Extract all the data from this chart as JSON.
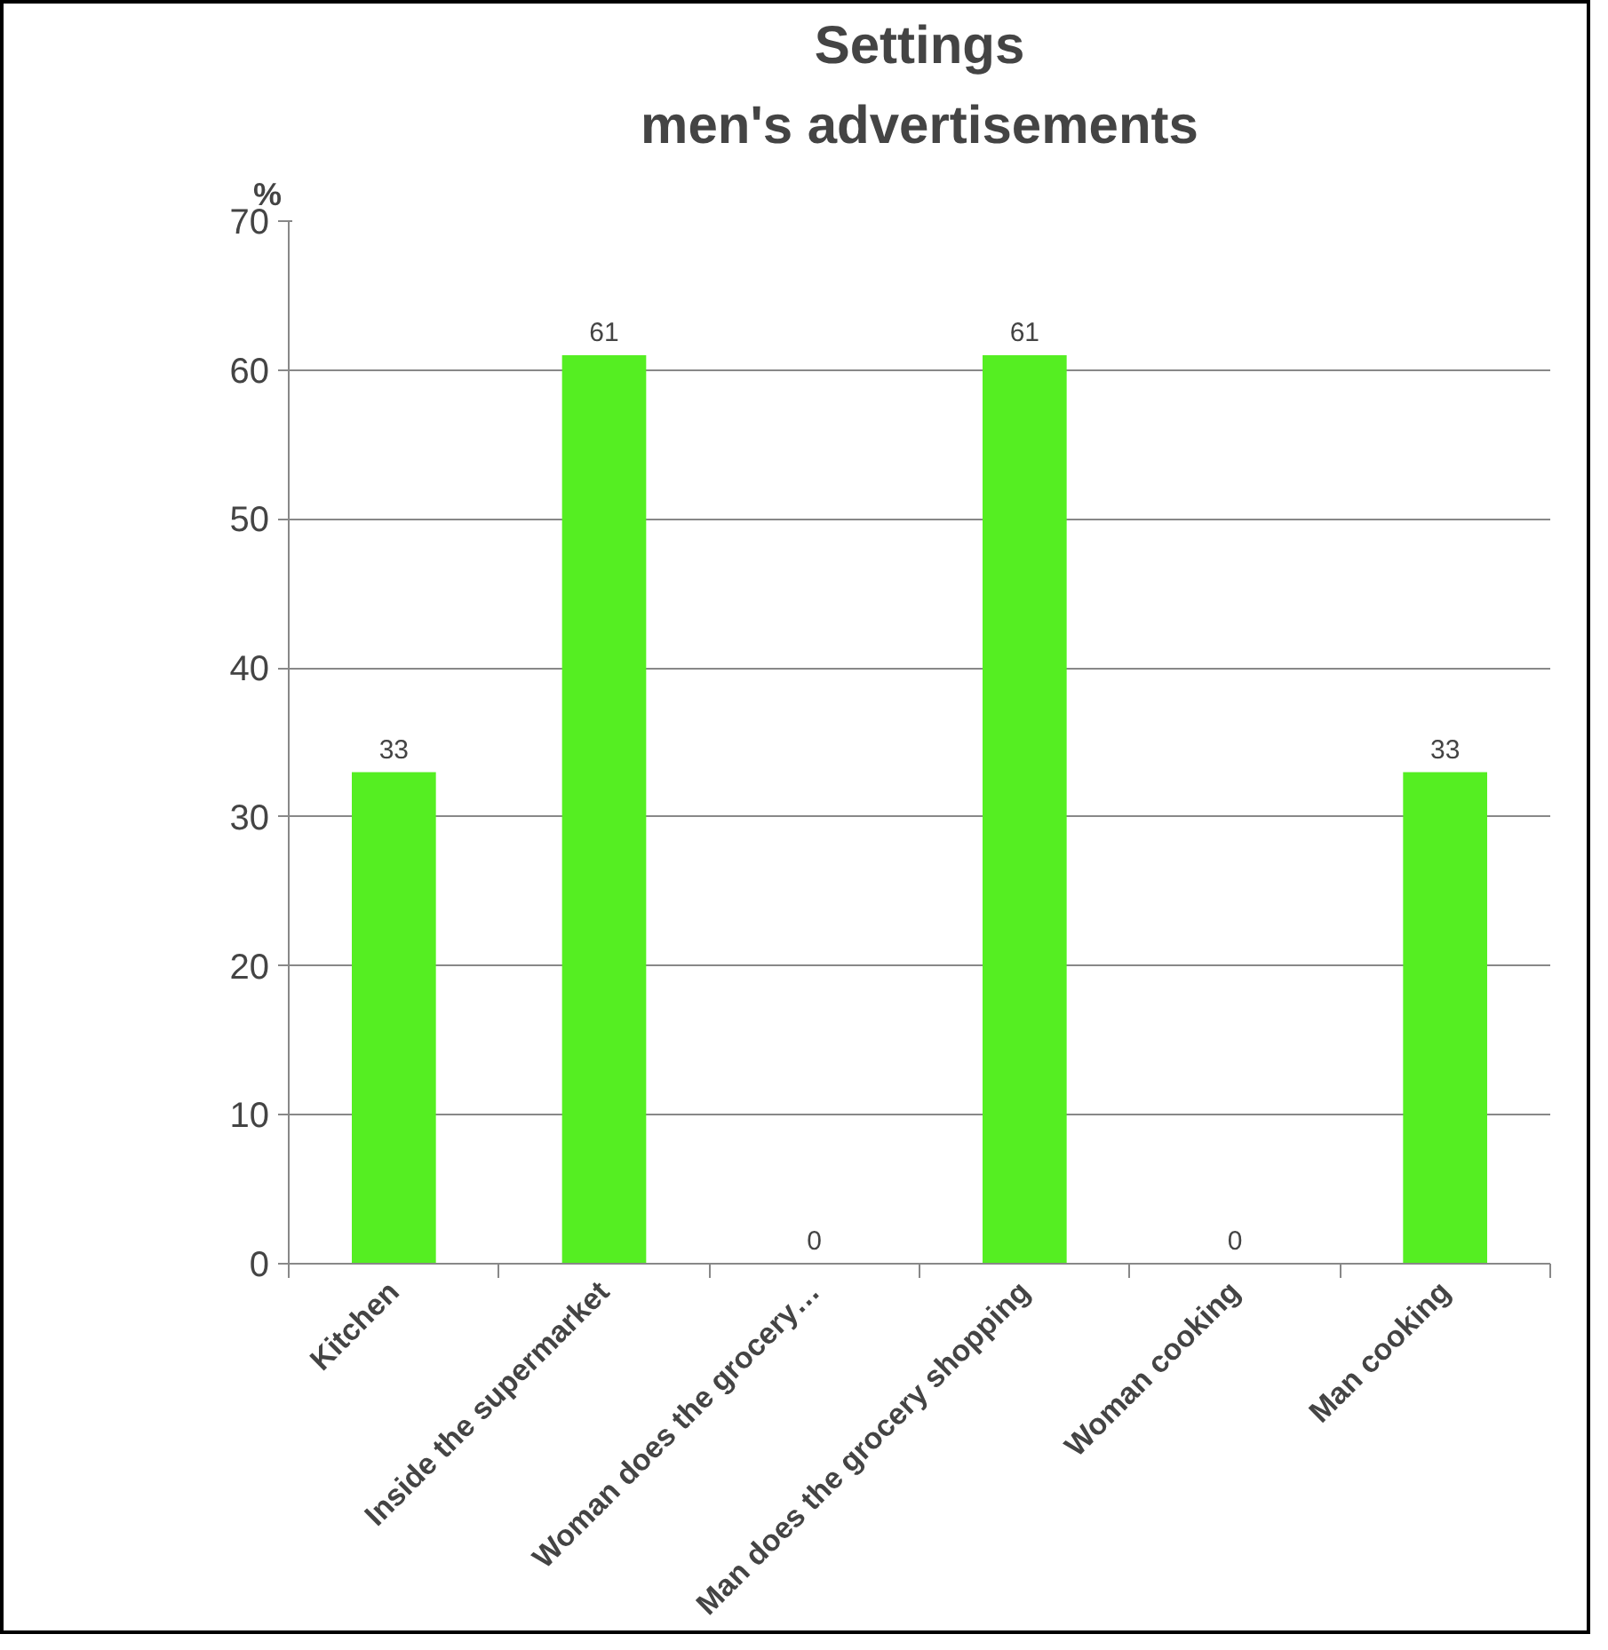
{
  "chart_data": {
    "type": "bar",
    "title": "Settings",
    "subtitle": "men's advertisements",
    "ylabel": "%",
    "categories": [
      "Kitchen",
      "Inside the supermarket",
      "Woman does the grocery…",
      "Man does the grocery shopping",
      "Woman cooking",
      "Man cooking"
    ],
    "values": [
      33,
      61,
      0,
      61,
      0,
      33
    ],
    "color": "#55ee22",
    "ylim": [
      0,
      70
    ],
    "yticks": [
      0,
      10,
      20,
      30,
      40,
      50,
      60,
      70
    ],
    "grid": "y",
    "data_labels": true
  }
}
